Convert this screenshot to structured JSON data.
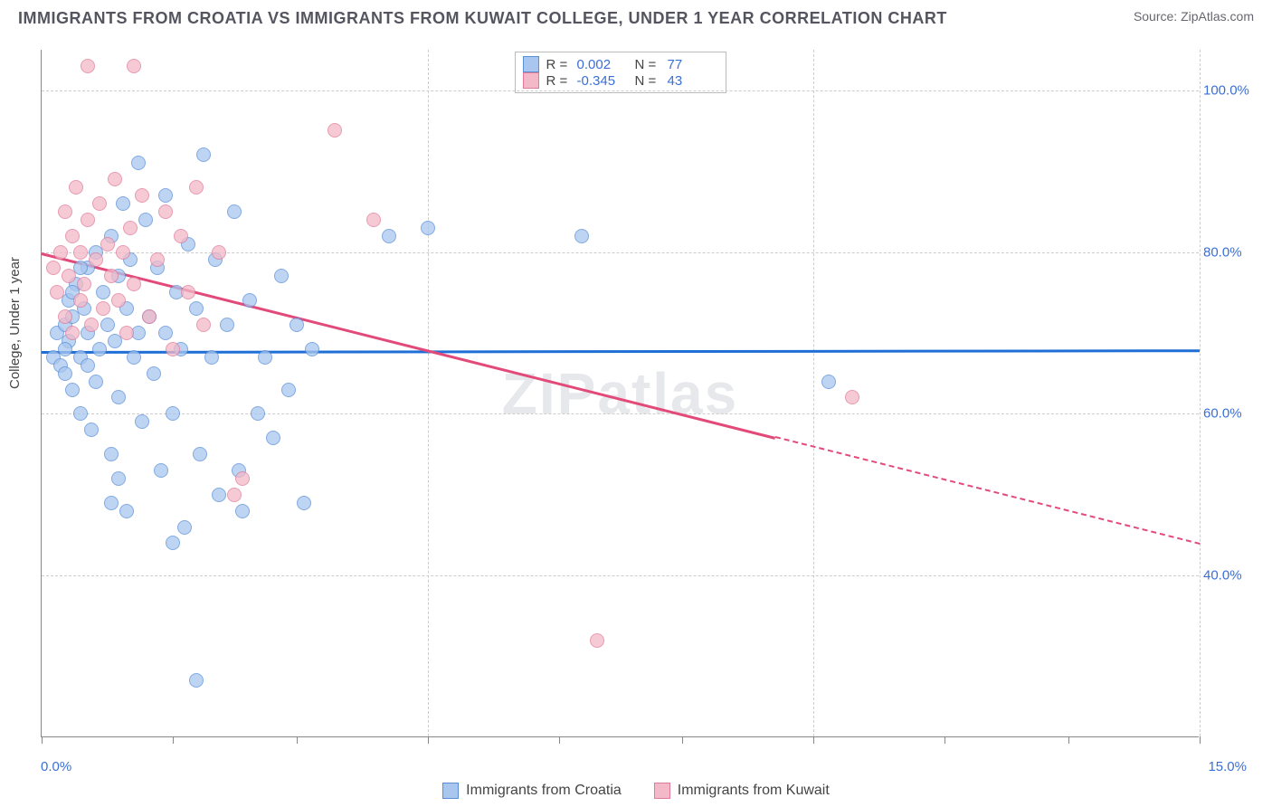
{
  "title": "IMMIGRANTS FROM CROATIA VS IMMIGRANTS FROM KUWAIT COLLEGE, UNDER 1 YEAR CORRELATION CHART",
  "source": "Source: ZipAtlas.com",
  "watermark": "ZIPatlas",
  "ylabel": "College, Under 1 year",
  "chart": {
    "type": "scatter",
    "xlim": [
      0,
      15
    ],
    "ylim": [
      20,
      105
    ],
    "xticks_major": [
      0,
      5,
      10,
      15
    ],
    "xticks_minor": [
      1.7,
      3.3,
      6.7,
      8.3,
      11.7,
      13.3
    ],
    "yticks": [
      40,
      60,
      80,
      100
    ],
    "xtick_labels": {
      "0": "0.0%",
      "15": "15.0%"
    },
    "background_color": "#ffffff",
    "grid_color": "#cccccc",
    "axis_color": "#888888",
    "marker_size": 16,
    "series": [
      {
        "name": "Immigrants from Croatia",
        "fill": "#a8c6ee",
        "stroke": "#5a8fd6",
        "r_label": "R =",
        "r_value": "0.002",
        "n_label": "N =",
        "n_value": "77",
        "trend": {
          "color": "#1f6fd6",
          "y_at_x0": 67.8,
          "y_at_xmax": 68.0,
          "solid_to_x": 15
        },
        "points": [
          [
            0.15,
            67
          ],
          [
            0.2,
            70
          ],
          [
            0.25,
            66
          ],
          [
            0.3,
            71
          ],
          [
            0.3,
            65
          ],
          [
            0.35,
            74
          ],
          [
            0.35,
            69
          ],
          [
            0.4,
            63
          ],
          [
            0.4,
            72
          ],
          [
            0.45,
            76
          ],
          [
            0.5,
            67
          ],
          [
            0.5,
            60
          ],
          [
            0.55,
            73
          ],
          [
            0.6,
            78
          ],
          [
            0.6,
            70
          ],
          [
            0.65,
            58
          ],
          [
            0.7,
            80
          ],
          [
            0.7,
            64
          ],
          [
            0.75,
            68
          ],
          [
            0.8,
            75
          ],
          [
            0.85,
            71
          ],
          [
            0.9,
            55
          ],
          [
            0.9,
            82
          ],
          [
            0.95,
            69
          ],
          [
            1.0,
            77
          ],
          [
            1.0,
            62
          ],
          [
            1.05,
            86
          ],
          [
            1.1,
            73
          ],
          [
            1.1,
            48
          ],
          [
            1.15,
            79
          ],
          [
            1.2,
            67
          ],
          [
            1.25,
            91
          ],
          [
            1.25,
            70
          ],
          [
            1.3,
            59
          ],
          [
            1.35,
            84
          ],
          [
            1.4,
            72
          ],
          [
            1.45,
            65
          ],
          [
            1.5,
            78
          ],
          [
            1.55,
            53
          ],
          [
            1.6,
            87
          ],
          [
            1.6,
            70
          ],
          [
            1.7,
            60
          ],
          [
            1.75,
            75
          ],
          [
            1.8,
            68
          ],
          [
            1.85,
            46
          ],
          [
            1.9,
            81
          ],
          [
            2.0,
            73
          ],
          [
            2.05,
            55
          ],
          [
            2.1,
            92
          ],
          [
            2.2,
            67
          ],
          [
            2.25,
            79
          ],
          [
            2.3,
            50
          ],
          [
            2.4,
            71
          ],
          [
            2.5,
            85
          ],
          [
            2.55,
            53
          ],
          [
            2.6,
            48
          ],
          [
            2.7,
            74
          ],
          [
            2.8,
            60
          ],
          [
            2.9,
            67
          ],
          [
            3.0,
            57
          ],
          [
            3.1,
            77
          ],
          [
            3.2,
            63
          ],
          [
            3.3,
            71
          ],
          [
            3.4,
            49
          ],
          [
            3.5,
            68
          ],
          [
            4.5,
            82
          ],
          [
            5.0,
            83
          ],
          [
            7.0,
            82
          ],
          [
            2.0,
            27
          ],
          [
            1.7,
            44
          ],
          [
            1.0,
            52
          ],
          [
            0.9,
            49
          ],
          [
            0.4,
            75
          ],
          [
            0.5,
            78
          ],
          [
            0.6,
            66
          ],
          [
            0.3,
            68
          ],
          [
            10.2,
            64
          ]
        ]
      },
      {
        "name": "Immigrants from Kuwait",
        "fill": "#f3b9c8",
        "stroke": "#e07a9a",
        "r_label": "R =",
        "r_value": "-0.345",
        "n_label": "N =",
        "n_value": "43",
        "trend": {
          "color": "#e24a7a",
          "y_at_x0": 80.0,
          "y_at_xmax": 44.0,
          "solid_to_x": 9.5
        },
        "points": [
          [
            0.15,
            78
          ],
          [
            0.2,
            75
          ],
          [
            0.25,
            80
          ],
          [
            0.3,
            85
          ],
          [
            0.3,
            72
          ],
          [
            0.35,
            77
          ],
          [
            0.4,
            82
          ],
          [
            0.4,
            70
          ],
          [
            0.45,
            88
          ],
          [
            0.5,
            74
          ],
          [
            0.5,
            80
          ],
          [
            0.55,
            76
          ],
          [
            0.6,
            84
          ],
          [
            0.65,
            71
          ],
          [
            0.7,
            79
          ],
          [
            0.75,
            86
          ],
          [
            0.8,
            73
          ],
          [
            0.85,
            81
          ],
          [
            0.9,
            77
          ],
          [
            0.95,
            89
          ],
          [
            1.0,
            74
          ],
          [
            1.05,
            80
          ],
          [
            1.1,
            70
          ],
          [
            1.15,
            83
          ],
          [
            1.2,
            76
          ],
          [
            1.3,
            87
          ],
          [
            1.4,
            72
          ],
          [
            1.5,
            79
          ],
          [
            1.6,
            85
          ],
          [
            1.7,
            68
          ],
          [
            1.8,
            82
          ],
          [
            1.9,
            75
          ],
          [
            2.0,
            88
          ],
          [
            2.1,
            71
          ],
          [
            2.3,
            80
          ],
          [
            2.5,
            50
          ],
          [
            2.6,
            52
          ],
          [
            3.8,
            95
          ],
          [
            4.3,
            84
          ],
          [
            1.2,
            103
          ],
          [
            0.6,
            103
          ],
          [
            7.2,
            32
          ],
          [
            10.5,
            62
          ]
        ]
      }
    ]
  },
  "legend_bottom": [
    {
      "label": "Immigrants from Croatia",
      "fill": "#a8c6ee",
      "stroke": "#5a8fd6"
    },
    {
      "label": "Immigrants from Kuwait",
      "fill": "#f3b9c8",
      "stroke": "#e07a9a"
    }
  ]
}
